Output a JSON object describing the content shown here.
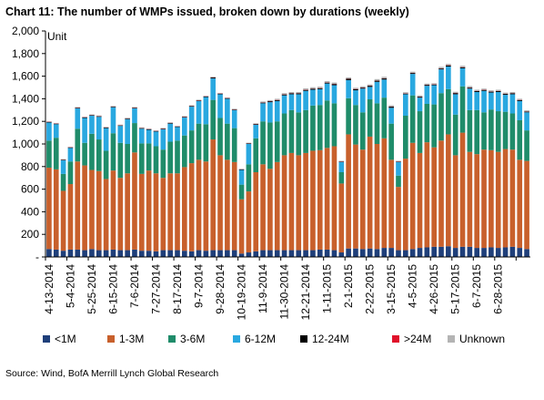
{
  "chart_data": {
    "type": "bar",
    "stacked": true,
    "title": "Chart 11: The number of WMPs  issued, broken down by durations (weekly)",
    "ylabel": "Unit",
    "ylim": [
      0,
      2000
    ],
    "yticks": [
      0,
      200,
      400,
      600,
      800,
      1000,
      1200,
      1400,
      1600,
      1800,
      2000
    ],
    "ytick_labels": [
      "-",
      "200",
      "400",
      "600",
      "800",
      "1,000",
      "1,200",
      "1,400",
      "1,600",
      "1,800",
      "2,000"
    ],
    "xtick_labels": [
      "4-13-2014",
      "5-4-2014",
      "5-25-2014",
      "6-15-2014",
      "7-6-2014",
      "7-27-2014",
      "8-17-2014",
      "9-7-2014",
      "9-28-2014",
      "10-19-2014",
      "11-9-2014",
      "11-30-2014",
      "12-21-2014",
      "1-11-2015",
      "2-1-2015",
      "2-22-2015",
      "3-15-2015",
      "4-5-2015",
      "4-26-2015",
      "5-17-2015",
      "6-7-2015",
      "6-28-2015"
    ],
    "xtick_every": 3,
    "grid": false,
    "legend": "bottom",
    "source": "Source: Wind, BofA Merrill Lynch Global Research",
    "series": [
      {
        "name": "<1M",
        "color": "#1f3f7a",
        "values": [
          70,
          65,
          55,
          65,
          65,
          60,
          70,
          60,
          60,
          65,
          60,
          60,
          65,
          55,
          55,
          50,
          60,
          60,
          60,
          55,
          50,
          60,
          55,
          60,
          60,
          60,
          60,
          30,
          40,
          50,
          60,
          60,
          60,
          60,
          60,
          60,
          60,
          60,
          65,
          65,
          60,
          40,
          75,
          75,
          70,
          75,
          70,
          80,
          80,
          60,
          60,
          70,
          80,
          85,
          90,
          90,
          95,
          80,
          90,
          90,
          80,
          80,
          85,
          80,
          85,
          90,
          80,
          70
        ]
      },
      {
        "name": "1-3M",
        "color": "#c8602c",
        "values": [
          720,
          710,
          530,
          580,
          780,
          750,
          700,
          700,
          630,
          700,
          640,
          680,
          860,
          680,
          710,
          690,
          640,
          680,
          680,
          740,
          780,
          800,
          790,
          980,
          840,
          800,
          780,
          480,
          540,
          700,
          760,
          720,
          780,
          840,
          860,
          840,
          860,
          880,
          880,
          900,
          920,
          610,
          1010,
          920,
          880,
          990,
          930,
          970,
          780,
          560,
          810,
          940,
          840,
          930,
          880,
          940,
          990,
          820,
          1010,
          840,
          830,
          870,
          860,
          850,
          870,
          860,
          780,
          780
        ]
      },
      {
        "name": "3-6M",
        "color": "#1f8c6a",
        "values": [
          240,
          280,
          150,
          200,
          290,
          200,
          320,
          280,
          250,
          330,
          310,
          260,
          260,
          270,
          240,
          240,
          250,
          280,
          290,
          280,
          290,
          320,
          330,
          350,
          330,
          320,
          300,
          130,
          240,
          300,
          380,
          410,
          360,
          370,
          380,
          380,
          380,
          400,
          400,
          420,
          380,
          100,
          320,
          350,
          330,
          330,
          360,
          360,
          320,
          100,
          380,
          420,
          370,
          340,
          380,
          420,
          400,
          360,
          410,
          370,
          390,
          330,
          360,
          360,
          330,
          320,
          350,
          270
        ]
      },
      {
        "name": "6-12M",
        "color": "#29a8e0",
        "values": [
          160,
          120,
          120,
          120,
          180,
          220,
          160,
          200,
          200,
          230,
          150,
          220,
          130,
          130,
          120,
          130,
          180,
          160,
          120,
          160,
          210,
          200,
          240,
          190,
          210,
          220,
          160,
          130,
          180,
          120,
          160,
          180,
          180,
          160,
          140,
          160,
          170,
          140,
          140,
          150,
          160,
          90,
          160,
          130,
          210,
          110,
          190,
          160,
          140,
          120,
          190,
          190,
          120,
          160,
          170,
          210,
          200,
          180,
          160,
          190,
          160,
          190,
          150,
          170,
          150,
          170,
          170,
          160
        ]
      },
      {
        "name": "12-24M",
        "color": "#000000",
        "values": [
          5,
          4,
          4,
          4,
          5,
          5,
          4,
          5,
          5,
          5,
          4,
          5,
          5,
          5,
          5,
          4,
          5,
          5,
          4,
          5,
          5,
          5,
          5,
          8,
          5,
          5,
          5,
          4,
          4,
          6,
          6,
          8,
          8,
          8,
          8,
          8,
          8,
          8,
          8,
          8,
          10,
          4,
          12,
          10,
          8,
          10,
          10,
          10,
          10,
          4,
          6,
          8,
          8,
          8,
          6,
          8,
          10,
          10,
          8,
          8,
          8,
          8,
          8,
          8,
          8,
          8,
          8,
          6
        ]
      },
      {
        "name": ">24M",
        "color": "#e0102a",
        "values": [
          2,
          2,
          2,
          2,
          2,
          2,
          2,
          2,
          2,
          2,
          2,
          2,
          2,
          2,
          2,
          2,
          2,
          2,
          2,
          2,
          2,
          2,
          2,
          2,
          2,
          2,
          2,
          2,
          2,
          2,
          2,
          2,
          2,
          2,
          2,
          2,
          2,
          2,
          2,
          2,
          2,
          2,
          2,
          2,
          2,
          2,
          2,
          2,
          2,
          2,
          2,
          2,
          2,
          2,
          2,
          2,
          2,
          2,
          2,
          2,
          2,
          2,
          2,
          2,
          2,
          2,
          2,
          2
        ]
      },
      {
        "name": "Unknown",
        "color": "#b4b4b4",
        "values": [
          3,
          5,
          5,
          5,
          5,
          5,
          5,
          5,
          5,
          5,
          5,
          5,
          5,
          5,
          5,
          5,
          5,
          5,
          5,
          5,
          5,
          5,
          5,
          5,
          5,
          5,
          5,
          5,
          5,
          5,
          8,
          8,
          10,
          10,
          10,
          10,
          12,
          12,
          12,
          12,
          12,
          5,
          10,
          10,
          10,
          10,
          12,
          12,
          10,
          5,
          10,
          10,
          10,
          10,
          10,
          12,
          12,
          10,
          12,
          12,
          10,
          10,
          10,
          10,
          10,
          10,
          10,
          10
        ]
      }
    ]
  }
}
